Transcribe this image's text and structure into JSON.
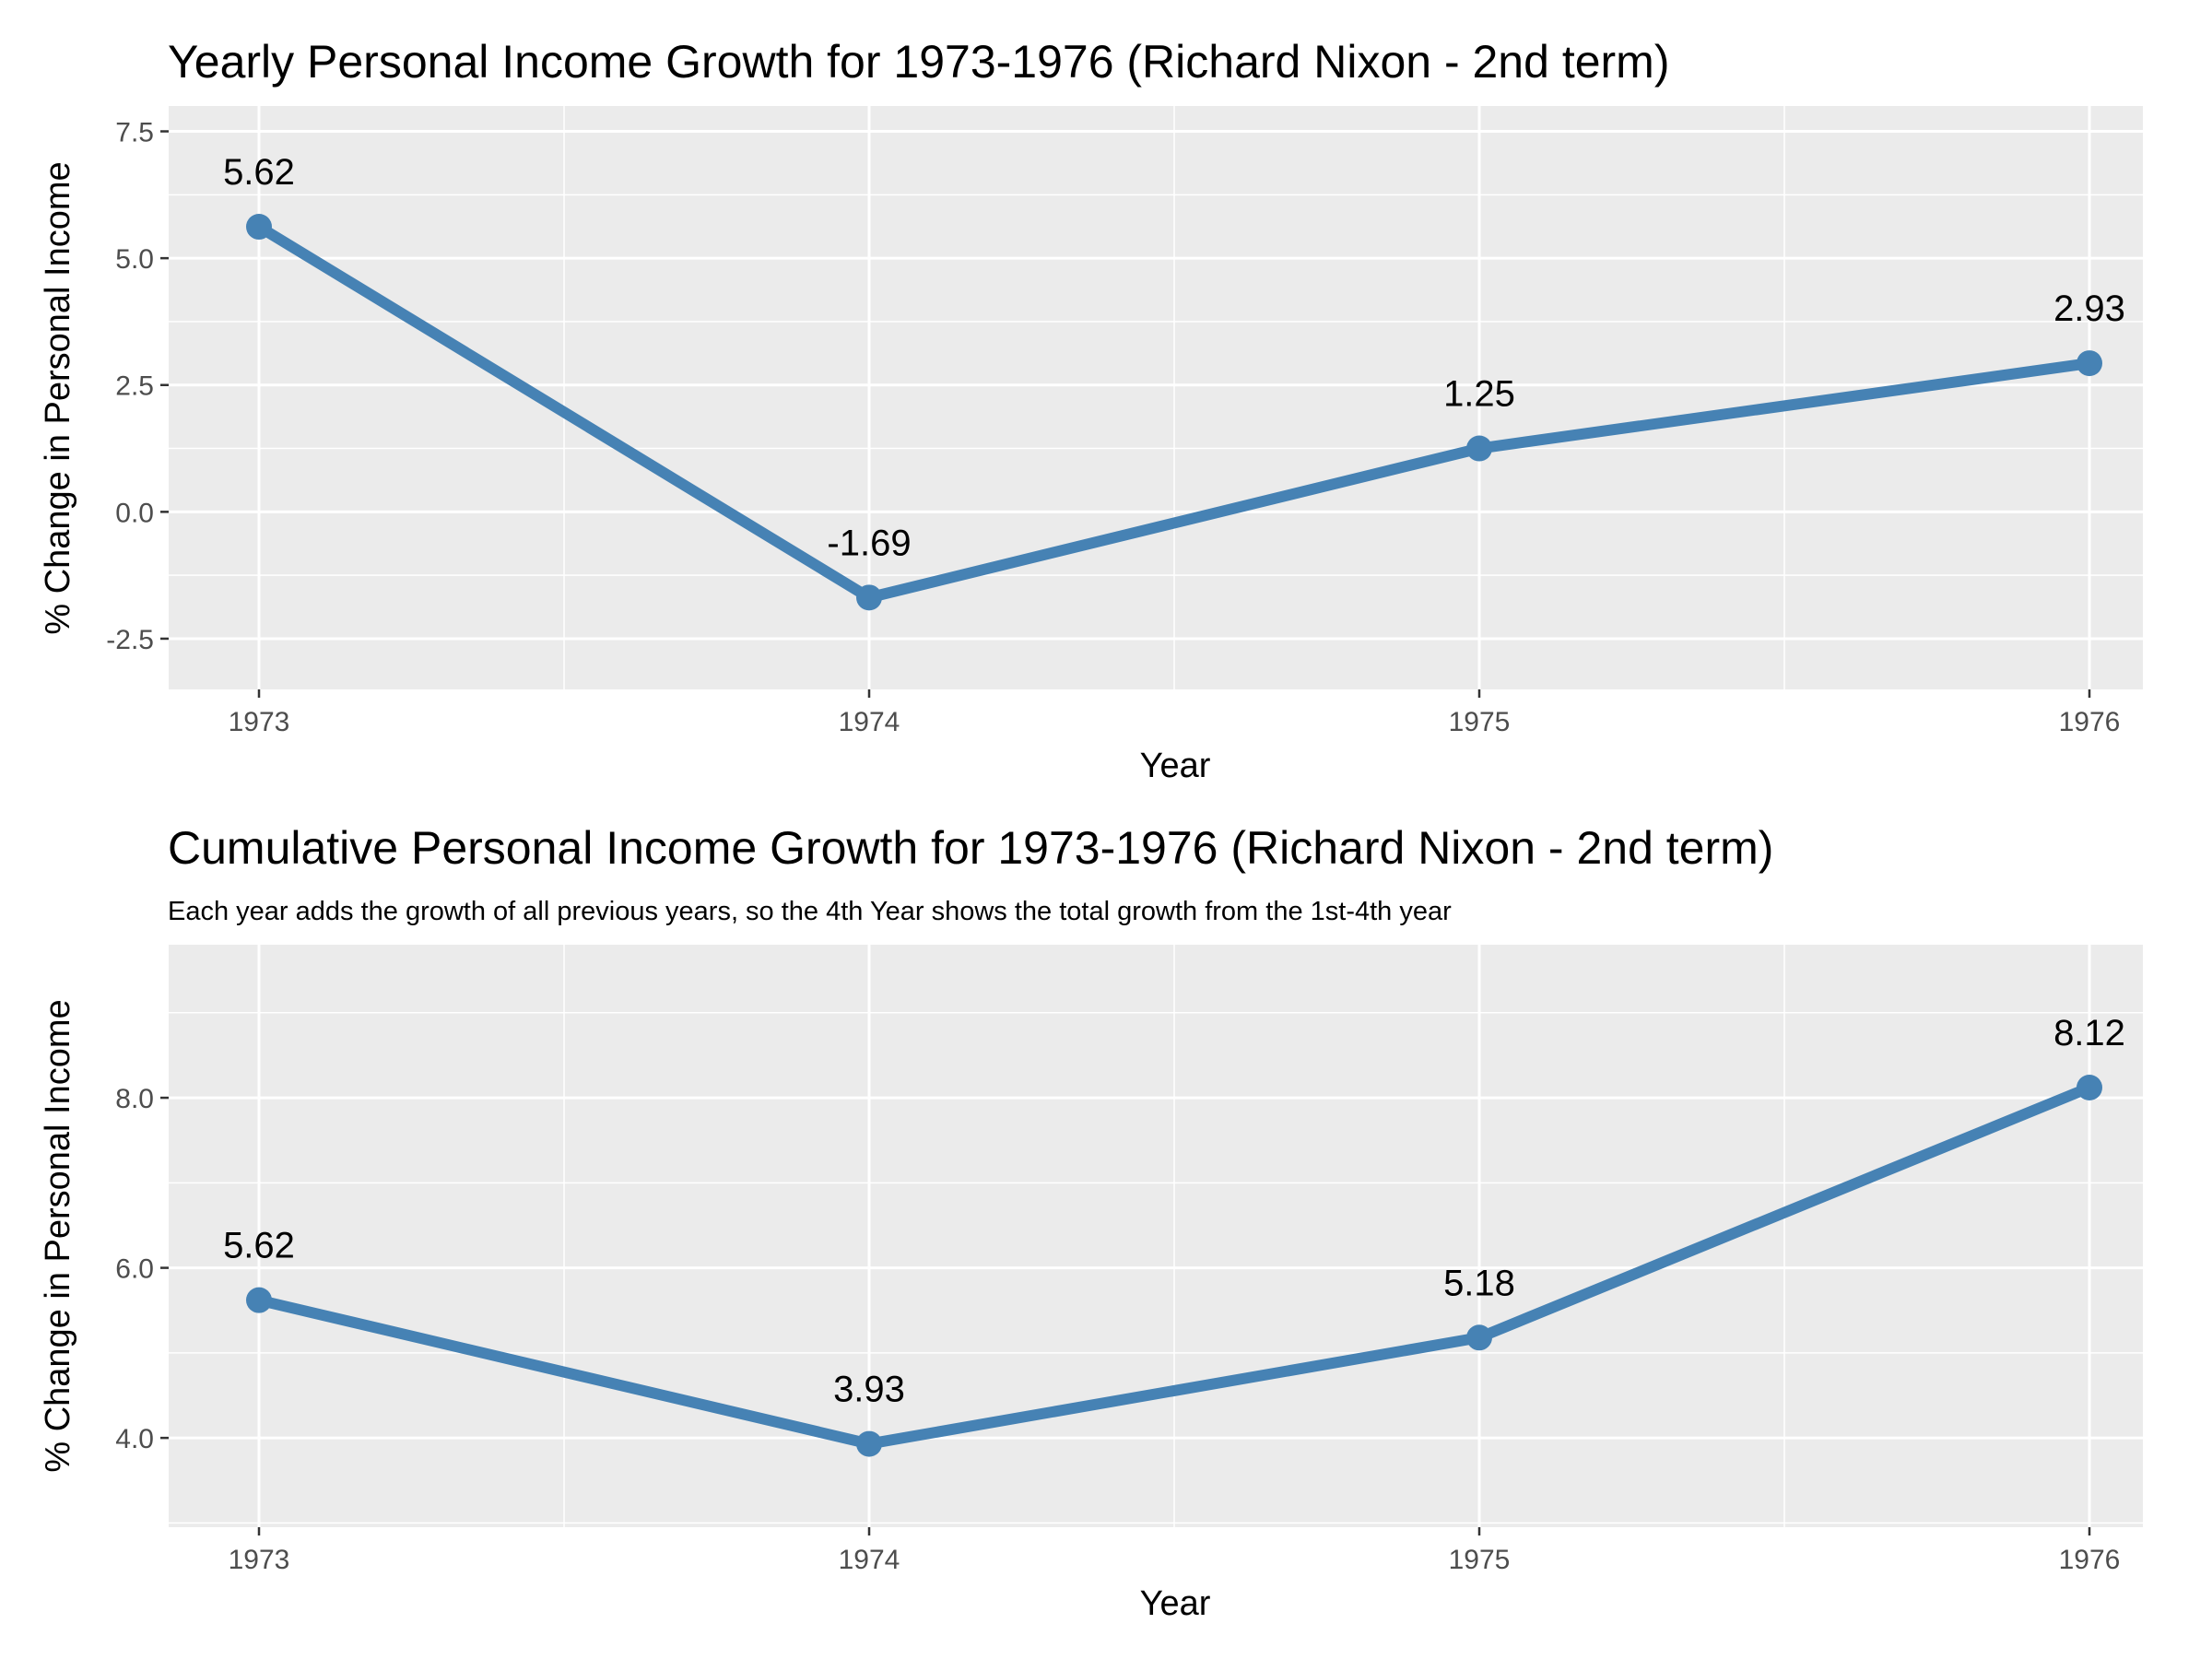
{
  "chart_data": [
    {
      "type": "line",
      "title": "Yearly Personal Income Growth for 1973-1976 (Richard Nixon - 2nd term)",
      "subtitle": "",
      "xlabel": "Year",
      "ylabel": "% Change in Personal Income",
      "categories": [
        "1973",
        "1974",
        "1975",
        "1976"
      ],
      "values": [
        5.62,
        -1.69,
        1.25,
        2.93
      ],
      "data_labels": [
        "5.62",
        "-1.69",
        "1.25",
        "2.93"
      ],
      "yticks": [
        -2.5,
        0.0,
        2.5,
        5.0,
        7.5
      ],
      "ytick_labels": [
        "-2.5",
        "0.0",
        "2.5",
        "5.0",
        "7.5"
      ],
      "ylim": [
        -3.5,
        8.0
      ],
      "grid": true,
      "line_color": "#4682B4",
      "panel_color": "#EBEBEB"
    },
    {
      "type": "line",
      "title": "Cumulative Personal Income Growth for 1973-1976 (Richard Nixon - 2nd term)",
      "subtitle": "Each year adds the growth of all previous years, so the 4th Year shows the total growth from the 1st-4th year",
      "xlabel": "Year",
      "ylabel": "% Change in Personal Income",
      "categories": [
        "1973",
        "1974",
        "1975",
        "1976"
      ],
      "values": [
        5.62,
        3.93,
        5.18,
        8.12
      ],
      "data_labels": [
        "5.62",
        "3.93",
        "5.18",
        "8.12"
      ],
      "yticks": [
        4.0,
        6.0,
        8.0
      ],
      "ytick_labels": [
        "4.0",
        "6.0",
        "8.0"
      ],
      "ylim": [
        2.95,
        9.8
      ],
      "grid": true,
      "line_color": "#4682B4",
      "panel_color": "#EBEBEB"
    }
  ]
}
